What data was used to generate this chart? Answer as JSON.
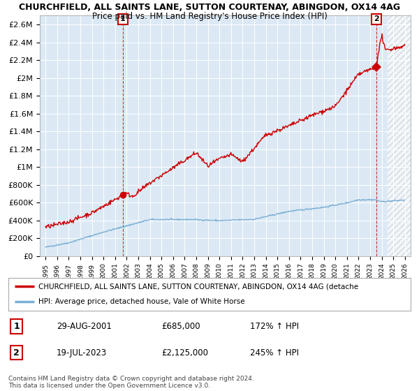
{
  "title": "CHURCHFIELD, ALL SAINTS LANE, SUTTON COURTENAY, ABINGDON, OX14 4AG",
  "subtitle": "Price paid vs. HM Land Registry's House Price Index (HPI)",
  "legend_line1": "CHURCHFIELD, ALL SAINTS LANE, SUTTON COURTENAY, ABINGDON, OX14 4AG (detache",
  "legend_line2": "HPI: Average price, detached house, Vale of White Horse",
  "annotation1_date": "29-AUG-2001",
  "annotation1_price": "£685,000",
  "annotation1_text": "172% ↑ HPI",
  "annotation2_date": "19-JUL-2023",
  "annotation2_price": "£2,125,000",
  "annotation2_text": "245% ↑ HPI",
  "footer": "Contains HM Land Registry data © Crown copyright and database right 2024.\nThis data is licensed under the Open Government Licence v3.0.",
  "hpi_color": "#7bafd4",
  "price_color": "#cc0000",
  "vline_color": "#cc0000",
  "plot_bg_color": "#dce9f5",
  "background_color": "#ffffff",
  "grid_color": "#ffffff",
  "ylim": [
    0,
    2700000
  ],
  "yticks": [
    0,
    200000,
    400000,
    600000,
    800000,
    1000000,
    1200000,
    1400000,
    1600000,
    1800000,
    2000000,
    2200000,
    2400000,
    2600000
  ],
  "ytick_labels": [
    "£0",
    "£200K",
    "£400K",
    "£600K",
    "£800K",
    "£1M",
    "£1.2M",
    "£1.4M",
    "£1.6M",
    "£1.8M",
    "£2M",
    "£2.2M",
    "£2.4M",
    "£2.6M"
  ],
  "sale1_x": 2001.67,
  "sale1_y": 685000,
  "sale2_x": 2023.54,
  "sale2_y": 2125000,
  "hatch_start": 2024.5,
  "xlim_left": 1994.5,
  "xlim_right": 2026.5
}
